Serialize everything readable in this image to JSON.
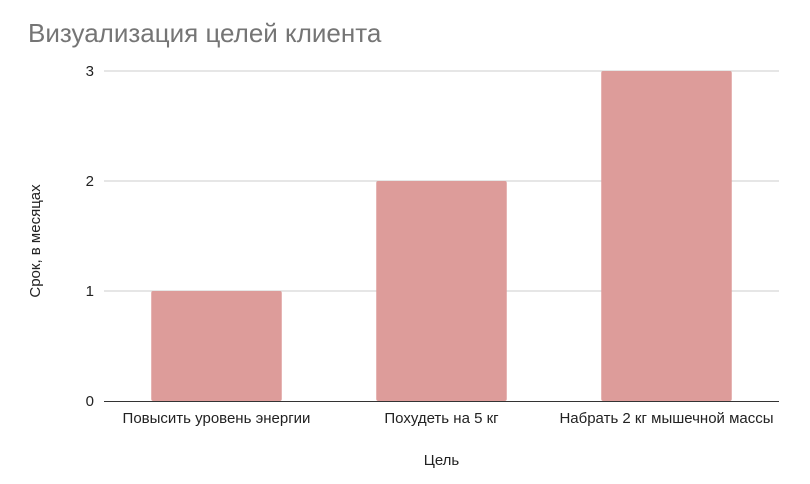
{
  "chart_data": {
    "type": "bar",
    "title": "Визуализация целей клиента",
    "xlabel": "Цель",
    "ylabel": "Срок, в месяцах",
    "categories": [
      "Повысить уровень энергии",
      "Похудеть на 5 кг",
      "Набрать 2 кг мышечной массы"
    ],
    "values": [
      1,
      2,
      3
    ],
    "ylim": [
      0,
      3
    ],
    "yticks": [
      0,
      1,
      2,
      3
    ],
    "grid": true,
    "legend": "none",
    "bar_color": "#dd9c9a"
  }
}
